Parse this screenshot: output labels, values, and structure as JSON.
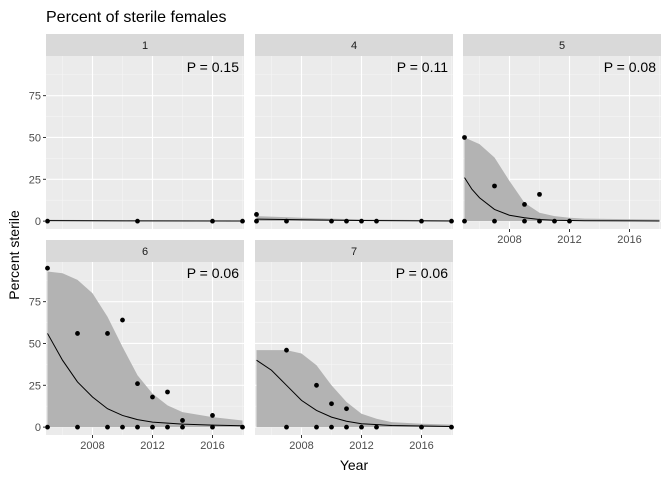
{
  "chart_data": {
    "type": "scatter",
    "title": "Percent of sterile females",
    "xlabel": "Year",
    "ylabel": "Percent sterile",
    "xlim": [
      2004.9,
      2018.1
    ],
    "ylim": [
      -4.7,
      98.7
    ],
    "x_ticks": [
      2008,
      2012,
      2016
    ],
    "y_ticks": [
      0,
      25,
      50,
      75
    ],
    "grid": true,
    "facet_layout": "3 columns x 2 rows, panel 6 and 7 on second row",
    "colors": {
      "panel_bg": "#ebebeb",
      "strip_bg": "#d9d9d9",
      "grid_major": "#ffffff",
      "ribbon": "#b3b3b3",
      "line": "#000000",
      "points": "#000000"
    },
    "panels": [
      {
        "id": "1",
        "p_label": "P =  0.15",
        "points": [
          [
            2005,
            0
          ],
          [
            2011,
            0
          ],
          [
            2016,
            0
          ],
          [
            2018,
            0
          ]
        ],
        "fit": [
          [
            2005,
            0.3
          ],
          [
            2010,
            0.15
          ],
          [
            2018,
            0.05
          ]
        ],
        "band_upper": [
          [
            2005,
            0.8
          ],
          [
            2010,
            0.5
          ],
          [
            2018,
            0.3
          ]
        ],
        "band_lower": [
          [
            2005,
            0
          ],
          [
            2018,
            0
          ]
        ]
      },
      {
        "id": "4",
        "p_label": "P =  0.11",
        "points": [
          [
            2005,
            4
          ],
          [
            2005,
            0
          ],
          [
            2007,
            0
          ],
          [
            2010,
            0
          ],
          [
            2011,
            0
          ],
          [
            2012,
            0
          ],
          [
            2013,
            0
          ],
          [
            2016,
            0
          ],
          [
            2018,
            0
          ]
        ],
        "fit": [
          [
            2005,
            1.2
          ],
          [
            2008,
            0.8
          ],
          [
            2012,
            0.4
          ],
          [
            2018,
            0.1
          ]
        ],
        "band_upper": [
          [
            2005,
            3
          ],
          [
            2008,
            2
          ],
          [
            2012,
            1
          ],
          [
            2018,
            0.5
          ]
        ],
        "band_lower": [
          [
            2005,
            0
          ],
          [
            2018,
            0
          ]
        ]
      },
      {
        "id": "5",
        "p_label": "P =  0.08",
        "points": [
          [
            2005,
            50
          ],
          [
            2005,
            0
          ],
          [
            2007,
            21
          ],
          [
            2007,
            0
          ],
          [
            2009,
            10
          ],
          [
            2009,
            0
          ],
          [
            2010,
            16
          ],
          [
            2010,
            0
          ],
          [
            2011,
            0
          ],
          [
            2012,
            0
          ]
        ],
        "fit": [
          [
            2005,
            26
          ],
          [
            2005.5,
            19
          ],
          [
            2006,
            14
          ],
          [
            2007,
            7
          ],
          [
            2008,
            3.5
          ],
          [
            2009,
            2
          ],
          [
            2010,
            1
          ],
          [
            2011,
            0.5
          ],
          [
            2013,
            0.2
          ],
          [
            2018,
            0.1
          ]
        ],
        "band_upper": [
          [
            2005,
            50
          ],
          [
            2006,
            46
          ],
          [
            2007,
            38
          ],
          [
            2008,
            24
          ],
          [
            2009,
            11
          ],
          [
            2010,
            5
          ],
          [
            2011,
            3
          ],
          [
            2012,
            2
          ],
          [
            2013,
            1.5
          ],
          [
            2018,
            1
          ]
        ],
        "band_lower": [
          [
            2005,
            0
          ],
          [
            2018,
            0
          ]
        ]
      },
      {
        "id": "6",
        "p_label": "P =  0.06",
        "points": [
          [
            2005,
            95
          ],
          [
            2005,
            0
          ],
          [
            2007,
            56
          ],
          [
            2007,
            0
          ],
          [
            2009,
            56
          ],
          [
            2009,
            0
          ],
          [
            2010,
            64
          ],
          [
            2010,
            0
          ],
          [
            2011,
            26
          ],
          [
            2011,
            0
          ],
          [
            2012,
            18
          ],
          [
            2012,
            0
          ],
          [
            2013,
            21
          ],
          [
            2013,
            0
          ],
          [
            2014,
            4
          ],
          [
            2014,
            0
          ],
          [
            2016,
            7
          ],
          [
            2016,
            0
          ],
          [
            2018,
            0
          ]
        ],
        "fit": [
          [
            2005,
            56
          ],
          [
            2006,
            40
          ],
          [
            2007,
            27
          ],
          [
            2008,
            18
          ],
          [
            2009,
            11
          ],
          [
            2010,
            7
          ],
          [
            2011,
            4.5
          ],
          [
            2012,
            3
          ],
          [
            2014,
            1.8
          ],
          [
            2016,
            1.2
          ],
          [
            2018,
            0.8
          ]
        ],
        "band_upper": [
          [
            2005,
            93
          ],
          [
            2006,
            92
          ],
          [
            2007,
            88
          ],
          [
            2008,
            80
          ],
          [
            2009,
            66
          ],
          [
            2010,
            48
          ],
          [
            2011,
            31
          ],
          [
            2012,
            20
          ],
          [
            2013,
            13
          ],
          [
            2014,
            9
          ],
          [
            2016,
            6
          ],
          [
            2018,
            4
          ]
        ],
        "band_lower": [
          [
            2005,
            0
          ],
          [
            2018,
            0
          ]
        ]
      },
      {
        "id": "7",
        "p_label": "P =  0.06",
        "points": [
          [
            2007,
            46
          ],
          [
            2007,
            0
          ],
          [
            2009,
            25
          ],
          [
            2009,
            0
          ],
          [
            2010,
            14
          ],
          [
            2010,
            0
          ],
          [
            2011,
            11
          ],
          [
            2011,
            0
          ],
          [
            2012,
            0
          ],
          [
            2013,
            0
          ],
          [
            2016,
            0
          ],
          [
            2018,
            0
          ]
        ],
        "fit": [
          [
            2005,
            40
          ],
          [
            2006,
            34
          ],
          [
            2007,
            25
          ],
          [
            2008,
            16
          ],
          [
            2009,
            10
          ],
          [
            2010,
            6
          ],
          [
            2011,
            3.5
          ],
          [
            2012,
            2
          ],
          [
            2014,
            1
          ],
          [
            2018,
            0.4
          ]
        ],
        "band_upper": [
          [
            2005,
            46
          ],
          [
            2007,
            46
          ],
          [
            2008,
            44
          ],
          [
            2009,
            37
          ],
          [
            2010,
            25
          ],
          [
            2011,
            15
          ],
          [
            2012,
            8
          ],
          [
            2013,
            5
          ],
          [
            2014,
            3
          ],
          [
            2016,
            2
          ],
          [
            2018,
            1.5
          ]
        ],
        "band_lower": [
          [
            2005,
            0
          ],
          [
            2018,
            0
          ]
        ]
      }
    ]
  }
}
